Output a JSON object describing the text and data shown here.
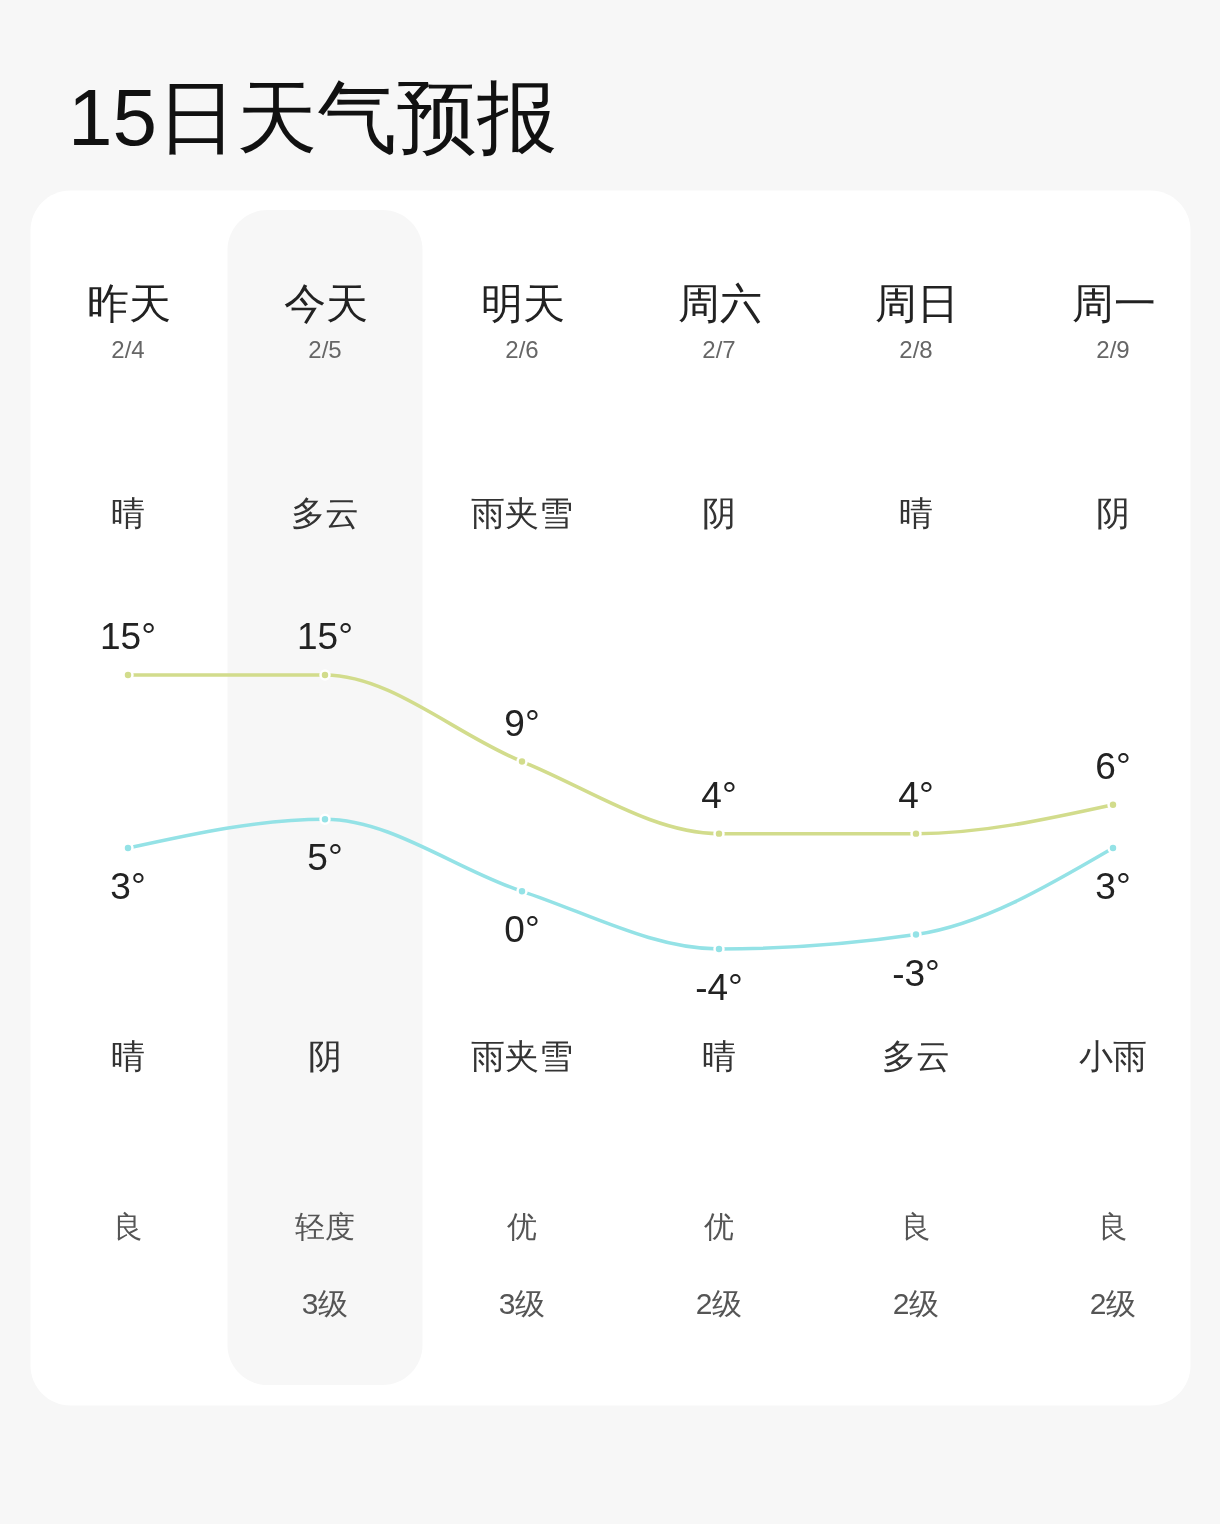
{
  "chart_data": {
    "type": "line",
    "title": "15日天气预报",
    "categories": [
      "昨天",
      "今天",
      "明天",
      "周六",
      "周日",
      "周一"
    ],
    "series": [
      {
        "color": "#d2dc8c",
        "values": [
          15,
          15,
          9,
          4,
          4,
          6
        ],
        "value_labels": [
          "15°",
          "15°",
          "9°",
          "4°",
          "4°",
          "6°"
        ]
      },
      {
        "color": "#94e2e6",
        "values": [
          3,
          5,
          0,
          -4,
          -3,
          3
        ],
        "value_labels": [
          "3°",
          "5°",
          "0°",
          "-4°",
          "-3°",
          "3°"
        ]
      }
    ],
    "marker": "circle",
    "line_style": "solid",
    "tick_labels": "x",
    "bands": [
      {
        "axis": "x",
        "from": "今天",
        "to": "今天",
        "color": "#f7f7f7"
      }
    ],
    "annotations": [
      "2/4",
      "2/5",
      "2/6",
      "2/7",
      "2/8",
      "2/9",
      "晴",
      "多云",
      "雨夹雪",
      "阴",
      "晴",
      "阴",
      "晴",
      "阴",
      "雨夹雪",
      "晴",
      "多云",
      "小雨",
      "良",
      "轻度",
      "优",
      "优",
      "良",
      "良",
      "3级",
      "3级",
      "2级",
      "2级",
      "2级"
    ]
  }
}
